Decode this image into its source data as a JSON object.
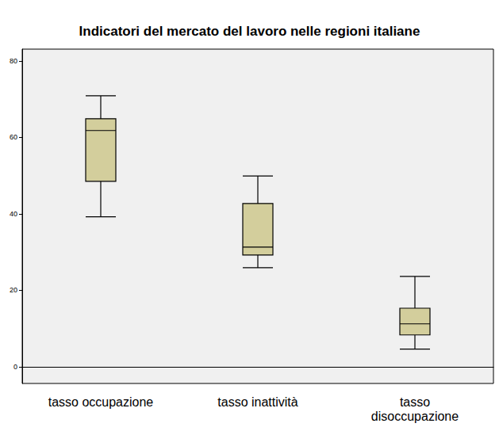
{
  "chart_data": {
    "type": "boxplot",
    "title": "Indicatori del mercato del lavoro nelle regioni italiane",
    "categories": [
      "tasso occupazione",
      "tasso inattività",
      "tasso disoccupazione"
    ],
    "values": [
      [
        39.2,
        48.5,
        61.8,
        64.9,
        70.9
      ],
      [
        25.9,
        29.2,
        31.3,
        42.7,
        49.9
      ],
      [
        4.6,
        8.3,
        11.2,
        15.3,
        23.6
      ]
    ],
    "color": "#d3ce9c",
    "ylim": [
      -4.4,
      83.1
    ],
    "yticks": [
      0,
      20,
      40,
      60,
      80
    ],
    "grid": false
  }
}
